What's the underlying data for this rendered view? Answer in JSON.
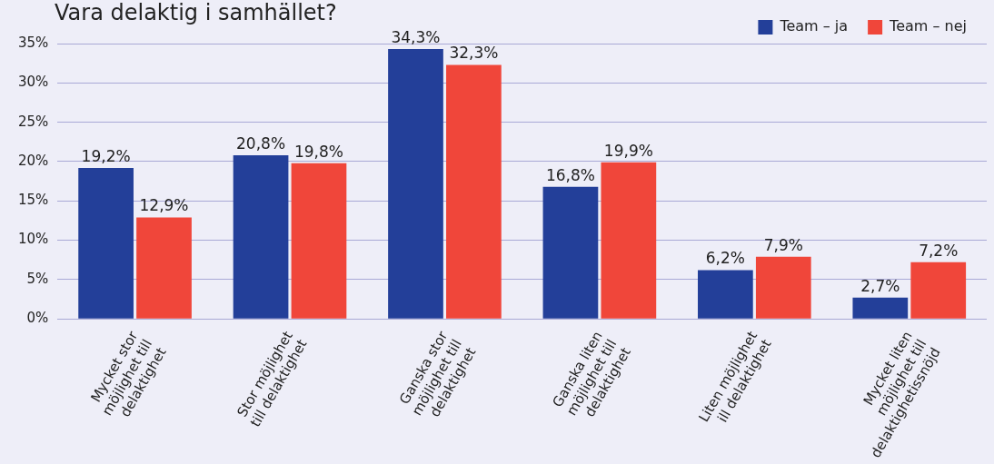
{
  "chart_data": {
    "type": "bar",
    "title": "Vara delaktig i samhället?",
    "categories": [
      "Mycket stor\nmöjlighet till\ndelaktighet",
      "Stor möjlighet\ntill delaktighet",
      "Ganska stor\nmöjlighet till\ndelaktighet",
      "Ganska liten\nmöjlighet till\ndelaktighet",
      "Liten möjlighet\nill delaktighet",
      "Mycket liten\nmöjlighet till\ndelaktighetissnöjd"
    ],
    "series": [
      {
        "name": "Team – ja",
        "color": "#233f99",
        "values": [
          19.2,
          20.8,
          34.3,
          16.8,
          6.2,
          2.7
        ],
        "value_labels": [
          "19,2%",
          "20,8%",
          "34,3%",
          "16,8%",
          "6,2%",
          "2,7%"
        ]
      },
      {
        "name": "Team – nej",
        "color": "#f0463a",
        "values": [
          12.9,
          19.8,
          32.3,
          19.9,
          7.9,
          7.2
        ],
        "value_labels": [
          "12,9%",
          "19,8%",
          "32,3%",
          "19,9%",
          "7,9%",
          "7,2%"
        ]
      }
    ],
    "ylim": [
      0,
      35
    ],
    "yticks": [
      {
        "value": 0,
        "label": "0%"
      },
      {
        "value": 5,
        "label": "5%"
      },
      {
        "value": 10,
        "label": "10%"
      },
      {
        "value": 15,
        "label": "15%"
      },
      {
        "value": 20,
        "label": "20%"
      },
      {
        "value": 25,
        "label": "25%"
      },
      {
        "value": 30,
        "label": "30%"
      },
      {
        "value": 35,
        "label": "35%"
      }
    ],
    "grid": "y",
    "legend": "top right"
  }
}
